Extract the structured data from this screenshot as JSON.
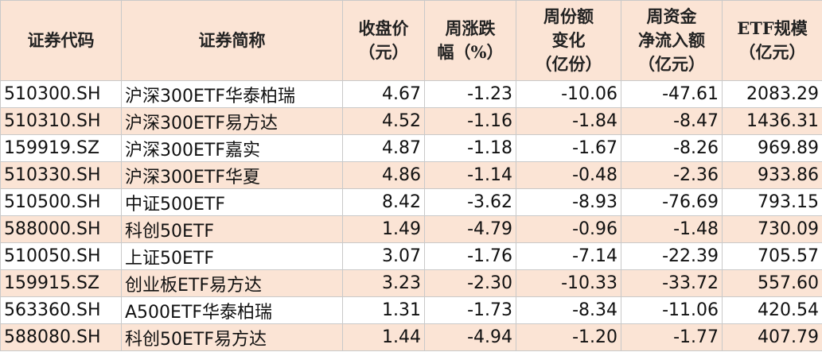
{
  "table": {
    "headers": [
      [
        "证券代码"
      ],
      [
        "证券简称"
      ],
      [
        "收盘价",
        "（元）"
      ],
      [
        "周涨跌",
        "幅（%）"
      ],
      [
        "周份额",
        "变化",
        "（亿份）"
      ],
      [
        "周资金",
        "净流入额",
        "（亿元）"
      ],
      [
        "ETF规模",
        "（亿元）"
      ]
    ],
    "rows": [
      [
        "510300.SH",
        "沪深300ETF华泰柏瑞",
        "4.67",
        "-1.23",
        "-10.06",
        "-47.61",
        "2083.29"
      ],
      [
        "510310.SH",
        "沪深300ETF易方达",
        "4.52",
        "-1.16",
        "-1.84",
        "-8.47",
        "1436.31"
      ],
      [
        "159919.SZ",
        "沪深300ETF嘉实",
        "4.87",
        "-1.18",
        "-1.67",
        "-8.26",
        "969.89"
      ],
      [
        "510330.SH",
        "沪深300ETF华夏",
        "4.86",
        "-1.14",
        "-0.48",
        "-2.36",
        "933.86"
      ],
      [
        "510500.SH",
        "中证500ETF",
        "8.42",
        "-3.62",
        "-8.93",
        "-76.69",
        "793.15"
      ],
      [
        "588000.SH",
        "科创50ETF",
        "1.49",
        "-4.79",
        "-0.96",
        "-1.48",
        "730.09"
      ],
      [
        "510050.SH",
        "上证50ETF",
        "3.07",
        "-1.76",
        "-7.14",
        "-22.39",
        "705.57"
      ],
      [
        "159915.SZ",
        "创业板ETF易方达",
        "3.23",
        "-2.30",
        "-10.33",
        "-33.72",
        "557.60"
      ],
      [
        "563360.SH",
        "A500ETF华泰柏瑞",
        "1.31",
        "-1.73",
        "-8.34",
        "-11.06",
        "420.54"
      ],
      [
        "588080.SH",
        "科创50ETF易方达",
        "1.44",
        "-4.94",
        "-1.20",
        "-1.77",
        "407.79"
      ]
    ]
  }
}
